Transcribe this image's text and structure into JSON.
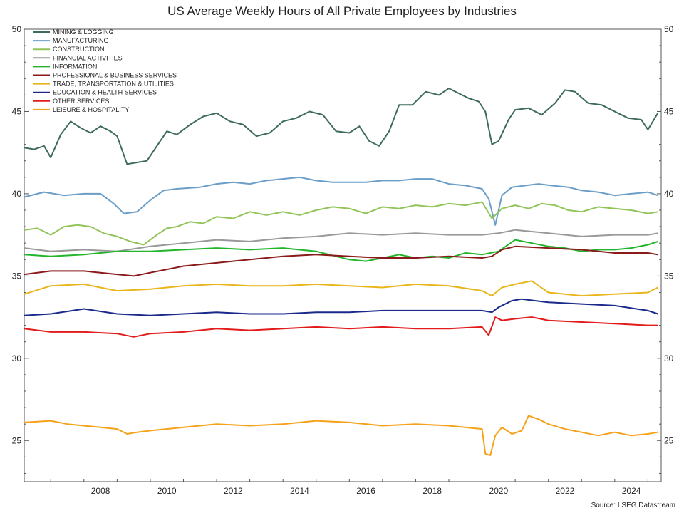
{
  "chart_data": {
    "type": "line",
    "title": "US Average Weekly Hours of All Private Employees by Industries",
    "source": "Source: LSEG Datastream",
    "xlabel": "",
    "ylabel": "",
    "x_ticks": [
      "2008",
      "2010",
      "2012",
      "2014",
      "2016",
      "2018",
      "2020",
      "2022",
      "2024"
    ],
    "xlim": [
      2006.2,
      2025.4
    ],
    "ylim": [
      22.5,
      50
    ],
    "y_ticks": [
      "25",
      "30",
      "35",
      "40",
      "45",
      "50"
    ],
    "grid": false,
    "legend_position": "top-left",
    "series": [
      {
        "name": "MINING & LOGGING",
        "color": "#3d6b5c",
        "x": [
          2006.2,
          2006.5,
          2006.8,
          2007.0,
          2007.3,
          2007.6,
          2007.9,
          2008.2,
          2008.5,
          2008.8,
          2009.0,
          2009.3,
          2009.6,
          2009.9,
          2010.2,
          2010.5,
          2010.8,
          2011.2,
          2011.6,
          2012.0,
          2012.4,
          2012.8,
          2013.2,
          2013.6,
          2014.0,
          2014.4,
          2014.8,
          2015.2,
          2015.6,
          2016.0,
          2016.3,
          2016.6,
          2016.9,
          2017.2,
          2017.5,
          2017.9,
          2018.3,
          2018.7,
          2019.0,
          2019.3,
          2019.6,
          2019.9,
          2020.1,
          2020.3,
          2020.5,
          2020.8,
          2021.0,
          2021.4,
          2021.8,
          2022.2,
          2022.5,
          2022.8,
          2023.2,
          2023.6,
          2024.0,
          2024.4,
          2024.8,
          2025.0,
          2025.3
        ],
        "y": [
          42.8,
          42.7,
          42.9,
          42.2,
          43.6,
          44.4,
          44.0,
          43.7,
          44.1,
          43.8,
          43.5,
          41.8,
          41.9,
          42.0,
          42.9,
          43.8,
          43.6,
          44.2,
          44.7,
          44.9,
          44.4,
          44.2,
          43.5,
          43.7,
          44.4,
          44.6,
          45.0,
          44.8,
          43.8,
          43.7,
          44.1,
          43.2,
          42.9,
          43.8,
          45.4,
          45.4,
          46.2,
          46.0,
          46.4,
          46.1,
          45.8,
          45.6,
          45.0,
          43.0,
          43.2,
          44.5,
          45.1,
          45.2,
          44.8,
          45.5,
          46.3,
          46.2,
          45.5,
          45.4,
          45.0,
          44.6,
          44.5,
          43.9,
          44.9
        ]
      },
      {
        "name": "MANUFACTURING",
        "color": "#6a9ec8",
        "x": [
          2006.2,
          2006.8,
          2007.4,
          2008.0,
          2008.5,
          2008.9,
          2009.2,
          2009.6,
          2010.0,
          2010.4,
          2010.8,
          2011.5,
          2012.0,
          2012.5,
          2013.0,
          2013.5,
          2014.0,
          2014.5,
          2015.0,
          2015.5,
          2016.0,
          2016.5,
          2017.0,
          2017.5,
          2018.0,
          2018.5,
          2019.0,
          2019.5,
          2020.0,
          2020.2,
          2020.4,
          2020.6,
          2020.9,
          2021.3,
          2021.7,
          2022.1,
          2022.6,
          2023.0,
          2023.5,
          2024.0,
          2024.5,
          2025.0,
          2025.3
        ],
        "y": [
          39.8,
          40.1,
          39.9,
          40.0,
          40.0,
          39.4,
          38.8,
          38.9,
          39.6,
          40.2,
          40.3,
          40.4,
          40.6,
          40.7,
          40.6,
          40.8,
          40.9,
          41.0,
          40.8,
          40.7,
          40.7,
          40.7,
          40.8,
          40.8,
          40.9,
          40.9,
          40.6,
          40.5,
          40.3,
          39.7,
          38.1,
          39.9,
          40.4,
          40.5,
          40.6,
          40.5,
          40.4,
          40.2,
          40.1,
          39.9,
          40.0,
          40.1,
          39.9
        ]
      },
      {
        "name": "CONSTRUCTION",
        "color": "#92c45a",
        "x": [
          2006.2,
          2006.6,
          2007.0,
          2007.4,
          2007.8,
          2008.2,
          2008.6,
          2009.0,
          2009.4,
          2009.8,
          2010.2,
          2010.5,
          2010.8,
          2011.2,
          2011.6,
          2012.0,
          2012.5,
          2013.0,
          2013.5,
          2014.0,
          2014.5,
          2015.0,
          2015.5,
          2016.0,
          2016.5,
          2017.0,
          2017.5,
          2018.0,
          2018.5,
          2019.0,
          2019.5,
          2020.0,
          2020.3,
          2020.6,
          2021.0,
          2021.4,
          2021.8,
          2022.2,
          2022.6,
          2023.0,
          2023.5,
          2024.0,
          2024.5,
          2025.0,
          2025.3
        ],
        "y": [
          37.8,
          37.9,
          37.5,
          38.0,
          38.1,
          38.0,
          37.6,
          37.4,
          37.1,
          36.9,
          37.5,
          37.9,
          38.0,
          38.3,
          38.2,
          38.6,
          38.5,
          38.9,
          38.7,
          38.9,
          38.7,
          39.0,
          39.2,
          39.1,
          38.8,
          39.2,
          39.1,
          39.3,
          39.2,
          39.4,
          39.3,
          39.5,
          38.5,
          39.1,
          39.3,
          39.1,
          39.4,
          39.3,
          39.0,
          38.9,
          39.2,
          39.1,
          39.0,
          38.8,
          38.9
        ]
      },
      {
        "name": "FINANCIAL ACTIVITIES",
        "color": "#999999",
        "x": [
          2006.2,
          2007.0,
          2008.0,
          2009.0,
          2010.0,
          2011.0,
          2012.0,
          2013.0,
          2014.0,
          2015.0,
          2016.0,
          2017.0,
          2018.0,
          2019.0,
          2020.0,
          2020.5,
          2021.0,
          2022.0,
          2023.0,
          2024.0,
          2025.0,
          2025.3
        ],
        "y": [
          36.7,
          36.5,
          36.6,
          36.5,
          36.8,
          37.0,
          37.2,
          37.1,
          37.3,
          37.4,
          37.6,
          37.5,
          37.6,
          37.5,
          37.5,
          37.6,
          37.8,
          37.6,
          37.4,
          37.5,
          37.5,
          37.6
        ]
      },
      {
        "name": "INFORMATION",
        "color": "#22b52c",
        "x": [
          2006.2,
          2007.0,
          2008.0,
          2009.0,
          2010.0,
          2011.0,
          2012.0,
          2013.0,
          2014.0,
          2015.0,
          2016.0,
          2016.5,
          2017.0,
          2017.5,
          2018.0,
          2018.5,
          2019.0,
          2019.5,
          2020.0,
          2020.5,
          2021.0,
          2021.5,
          2022.0,
          2022.5,
          2023.0,
          2023.5,
          2024.0,
          2024.5,
          2025.0,
          2025.3
        ],
        "y": [
          36.3,
          36.2,
          36.3,
          36.5,
          36.5,
          36.6,
          36.7,
          36.6,
          36.7,
          36.5,
          36.0,
          35.9,
          36.1,
          36.3,
          36.1,
          36.2,
          36.1,
          36.4,
          36.3,
          36.5,
          37.2,
          37.0,
          36.8,
          36.7,
          36.5,
          36.6,
          36.6,
          36.7,
          36.9,
          37.1
        ]
      },
      {
        "name": "PROFESSIONAL & BUSINESS SERVICES",
        "color": "#8b1a1a",
        "x": [
          2006.2,
          2007.0,
          2008.0,
          2009.0,
          2009.5,
          2010.0,
          2011.0,
          2012.0,
          2013.0,
          2014.0,
          2015.0,
          2016.0,
          2017.0,
          2018.0,
          2019.0,
          2020.0,
          2020.3,
          2020.6,
          2021.0,
          2022.0,
          2023.0,
          2024.0,
          2025.0,
          2025.3
        ],
        "y": [
          35.1,
          35.3,
          35.3,
          35.1,
          35.0,
          35.2,
          35.6,
          35.8,
          36.0,
          36.2,
          36.3,
          36.2,
          36.1,
          36.1,
          36.2,
          36.1,
          36.2,
          36.6,
          36.8,
          36.7,
          36.6,
          36.4,
          36.4,
          36.3
        ]
      },
      {
        "name": "TRADE, TRANSPORTATION & UTILITIES",
        "color": "#e8b51a",
        "x": [
          2006.2,
          2007.0,
          2008.0,
          2009.0,
          2010.0,
          2011.0,
          2012.0,
          2013.0,
          2014.0,
          2015.0,
          2016.0,
          2017.0,
          2018.0,
          2019.0,
          2020.0,
          2020.3,
          2020.6,
          2021.0,
          2021.5,
          2022.0,
          2023.0,
          2024.0,
          2025.0,
          2025.3
        ],
        "y": [
          33.9,
          34.4,
          34.5,
          34.1,
          34.2,
          34.4,
          34.5,
          34.4,
          34.4,
          34.5,
          34.4,
          34.3,
          34.5,
          34.4,
          34.1,
          33.8,
          34.3,
          34.5,
          34.7,
          34.0,
          33.8,
          33.9,
          34.0,
          34.3
        ]
      },
      {
        "name": "EDUCATION & HEALTH SERVICES",
        "color": "#1a2a8b",
        "x": [
          2006.2,
          2007.0,
          2008.0,
          2009.0,
          2010.0,
          2011.0,
          2012.0,
          2013.0,
          2014.0,
          2015.0,
          2016.0,
          2017.0,
          2018.0,
          2019.0,
          2020.0,
          2020.3,
          2020.5,
          2020.9,
          2021.2,
          2022.0,
          2023.0,
          2024.0,
          2025.0,
          2025.3
        ],
        "y": [
          32.6,
          32.7,
          33.0,
          32.7,
          32.6,
          32.7,
          32.8,
          32.7,
          32.7,
          32.8,
          32.8,
          32.9,
          32.9,
          32.9,
          32.9,
          32.8,
          33.1,
          33.5,
          33.6,
          33.4,
          33.3,
          33.2,
          32.9,
          32.7
        ]
      },
      {
        "name": "OTHER SERVICES",
        "color": "#e21b1b",
        "x": [
          2006.2,
          2007.0,
          2008.0,
          2009.0,
          2009.5,
          2010.0,
          2011.0,
          2012.0,
          2013.0,
          2014.0,
          2015.0,
          2016.0,
          2017.0,
          2018.0,
          2019.0,
          2020.0,
          2020.2,
          2020.4,
          2020.6,
          2021.0,
          2021.5,
          2022.0,
          2023.0,
          2024.0,
          2025.0,
          2025.3
        ],
        "y": [
          31.8,
          31.6,
          31.6,
          31.5,
          31.3,
          31.5,
          31.6,
          31.8,
          31.7,
          31.8,
          31.9,
          31.8,
          31.9,
          31.8,
          31.8,
          31.9,
          31.4,
          32.5,
          32.3,
          32.4,
          32.5,
          32.3,
          32.2,
          32.1,
          32.0,
          32.0
        ]
      },
      {
        "name": "LEISURE & HOSPITALITY",
        "color": "#f5a21a",
        "x": [
          2006.2,
          2007.0,
          2007.5,
          2008.0,
          2008.5,
          2009.0,
          2009.3,
          2009.6,
          2010.0,
          2011.0,
          2012.0,
          2013.0,
          2014.0,
          2015.0,
          2016.0,
          2017.0,
          2018.0,
          2019.0,
          2020.0,
          2020.1,
          2020.25,
          2020.4,
          2020.6,
          2020.9,
          2021.2,
          2021.4,
          2021.7,
          2022.0,
          2022.5,
          2023.0,
          2023.5,
          2024.0,
          2024.5,
          2025.0,
          2025.3
        ],
        "y": [
          26.1,
          26.2,
          26.0,
          25.9,
          25.8,
          25.7,
          25.4,
          25.5,
          25.6,
          25.8,
          26.0,
          25.9,
          26.0,
          26.2,
          26.1,
          25.9,
          26.0,
          25.9,
          25.7,
          24.2,
          24.1,
          25.3,
          25.8,
          25.4,
          25.6,
          26.5,
          26.3,
          26.0,
          25.7,
          25.5,
          25.3,
          25.5,
          25.3,
          25.4,
          25.5
        ]
      }
    ]
  }
}
